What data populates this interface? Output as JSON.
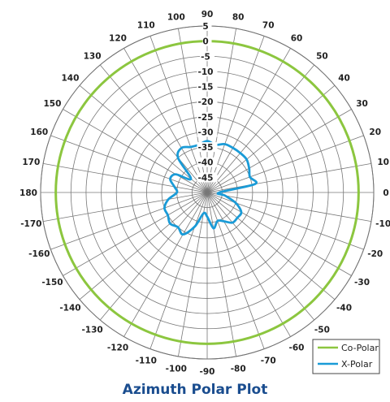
{
  "chart_data": {
    "type": "polar-line",
    "title": "Azimuth Polar Plot",
    "angle_ticks": [
      "90",
      "80",
      "70",
      "60",
      "50",
      "40",
      "30",
      "20",
      "10",
      "0",
      "-10",
      "-20",
      "-30",
      "-40",
      "-50",
      "-60",
      "-70",
      "-80",
      "-90",
      "-100",
      "-110",
      "-120",
      "-130",
      "-140",
      "-150",
      "-160",
      "-170",
      "180",
      "170",
      "160",
      "150",
      "140",
      "130",
      "120",
      "110",
      "100"
    ],
    "angle_values": [
      90,
      80,
      70,
      60,
      50,
      40,
      30,
      20,
      10,
      0,
      -10,
      -20,
      -30,
      -40,
      -50,
      -60,
      -70,
      -80,
      -90,
      -100,
      -110,
      -120,
      -130,
      -140,
      -150,
      -160,
      -170,
      180,
      170,
      160,
      150,
      140,
      130,
      120,
      110,
      100
    ],
    "radial_ticks": [
      "5",
      "0",
      "-5",
      "-10",
      "-15",
      "-20",
      "-25",
      "-30",
      "-35",
      "-40",
      "-45"
    ],
    "radial_values": [
      5,
      0,
      -5,
      -10,
      -15,
      -20,
      -25,
      -30,
      -35,
      -40,
      -45
    ],
    "rlim": [
      -50,
      5
    ],
    "legend": {
      "position": "bottom-right"
    },
    "series": [
      {
        "name": "Co-Polar",
        "color": "#8cc63f",
        "angles": [
          0,
          30,
          60,
          90,
          120,
          150,
          180,
          -150,
          -120,
          -90,
          -60,
          -30,
          0
        ],
        "values": [
          0,
          0,
          0,
          0,
          0,
          0,
          0,
          0,
          0,
          0,
          0,
          0,
          0
        ]
      },
      {
        "name": "X-Polar",
        "color": "#1a9bd7",
        "angles": [
          0,
          10,
          20,
          30,
          40,
          50,
          60,
          70,
          80,
          90,
          100,
          110,
          120,
          130,
          140,
          150,
          160,
          170,
          180,
          -170,
          -160,
          -150,
          -140,
          -130,
          -120,
          -110,
          -100,
          -90,
          -80,
          -70,
          -60,
          -50,
          -40,
          -30,
          -20,
          -10,
          0
        ],
        "values": [
          -46,
          -34,
          -35,
          -34,
          -33,
          -33,
          -33,
          -33,
          -34,
          -33,
          -34,
          -34,
          -33,
          -35,
          -43,
          -38,
          -37,
          -39,
          -40,
          -37,
          -35,
          -35,
          -34,
          -35,
          -34,
          -38,
          -43,
          -42,
          -38,
          -40,
          -39,
          -37,
          -37,
          -37,
          -40,
          -44,
          -46
        ]
      }
    ]
  }
}
